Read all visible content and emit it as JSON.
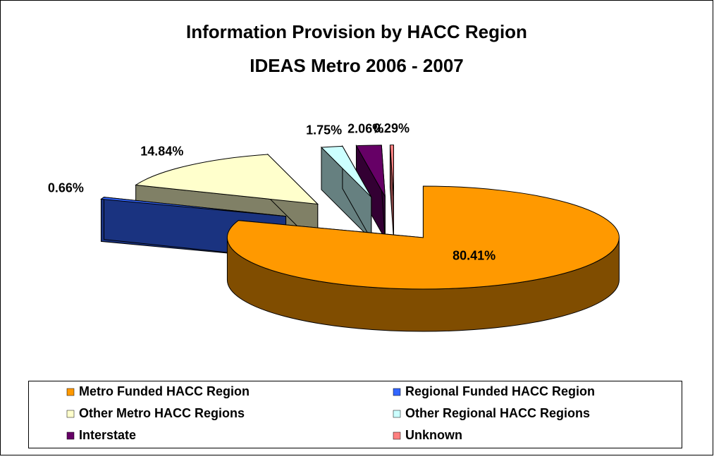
{
  "chart_data": {
    "type": "pie3d",
    "title": "Information Provision by HACC Region",
    "subtitle": "IDEAS Metro 2006 - 2007",
    "categories": [
      "Metro Funded HACC Region",
      "Regional Funded HACC Region",
      "Other Metro HACC Regions",
      "Other Regional HACC Regions",
      "Interstate",
      "Unknown"
    ],
    "values": [
      80.41,
      0.66,
      14.84,
      1.75,
      2.06,
      0.29
    ],
    "value_labels": [
      "80.41%",
      "0.66%",
      "14.84%",
      "1.75%",
      "2.06%",
      "0.29%"
    ],
    "colors": [
      "#FF9900",
      "#3366FF",
      "#FFFFCC",
      "#CCFFFF",
      "#660066",
      "#FF8080"
    ],
    "legend": "bottom"
  }
}
